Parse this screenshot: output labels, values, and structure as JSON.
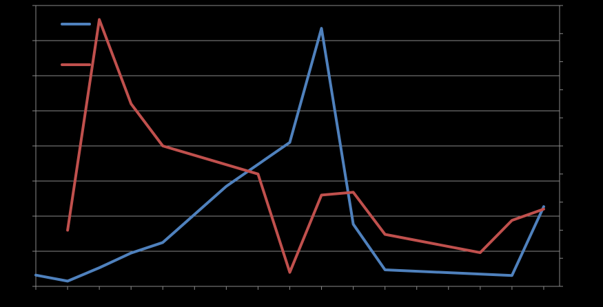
{
  "chart_data": {
    "type": "line",
    "dual_axis": true,
    "grid": true,
    "legend_position": "top-left",
    "x": [
      0,
      1,
      2,
      3,
      4,
      5,
      6,
      7,
      8,
      9,
      10,
      11,
      12,
      13,
      14,
      15,
      16
    ],
    "left_axis_range": [
      0,
      8
    ],
    "right_axis_range": [
      0,
      10
    ],
    "series": [
      {
        "axis": "left",
        "color": "#4F81BD",
        "x": [
          0,
          1,
          2,
          3,
          4,
          6,
          8,
          9,
          10,
          11,
          15,
          16
        ],
        "values": [
          0.32,
          0.15,
          0.53,
          0.95,
          1.25,
          2.85,
          4.1,
          7.35,
          1.77,
          0.47,
          0.31,
          2.27
        ]
      },
      {
        "axis": "right",
        "color": "#C0504D",
        "x": [
          1,
          2,
          3,
          4,
          7,
          8,
          9,
          10,
          11,
          14,
          15,
          16
        ],
        "values": [
          2.0,
          9.5,
          6.5,
          5.0,
          4.0,
          0.5,
          3.25,
          3.35,
          1.85,
          1.2,
          2.35,
          2.75
        ]
      }
    ]
  }
}
